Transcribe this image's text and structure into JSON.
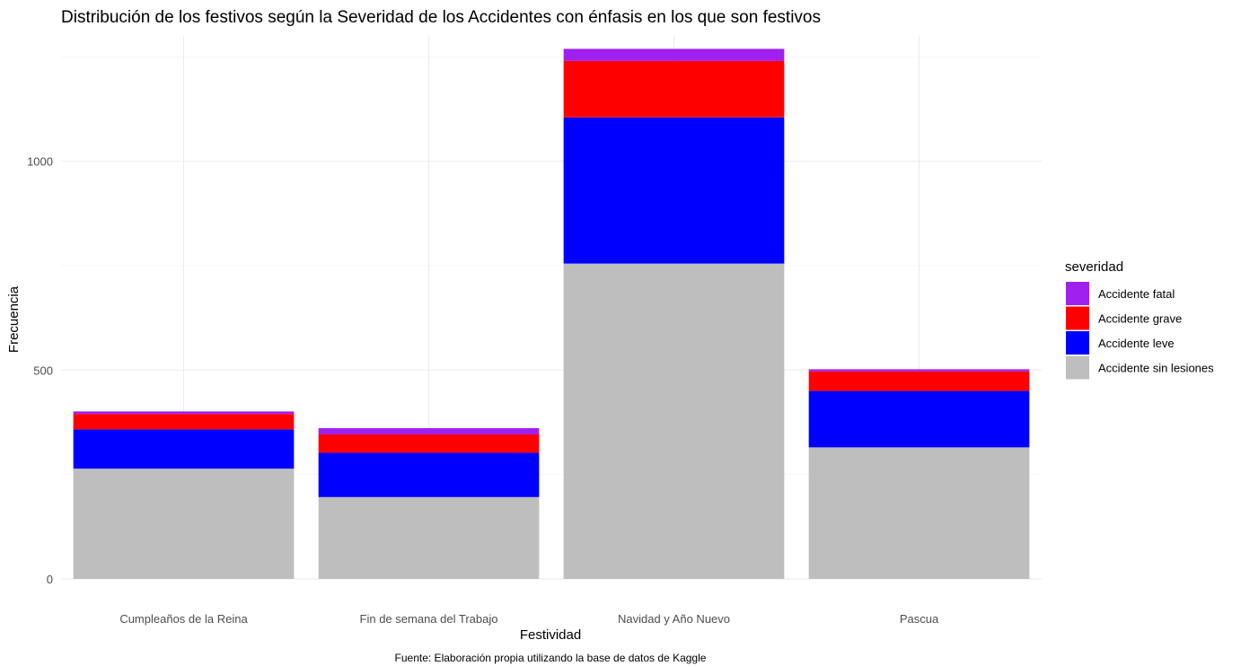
{
  "chart_data": {
    "type": "bar",
    "stacked": true,
    "title": "Distribución de los festivos según la Severidad de los Accidentes con énfasis en los que son festivos",
    "xlabel": "Festividad",
    "ylabel": "Frecuencia",
    "caption": "Fuente: Elaboración propia utilizando la base de datos de Kaggle",
    "categories": [
      "Cumpleaños de la Reina",
      "Fin de semana del Trabajo",
      "Navidad y Año Nuevo",
      "Pascua"
    ],
    "y_ticks": [
      0,
      500,
      1000
    ],
    "ylim": [
      0,
      1300
    ],
    "grid": true,
    "legend_title": "severidad",
    "legend_position": "right",
    "series": [
      {
        "name": "Accidente sin lesiones",
        "color": "#bebebe",
        "values": [
          264,
          196,
          755,
          315
        ]
      },
      {
        "name": "Accidente leve",
        "color": "#0000ff",
        "values": [
          94,
          106,
          350,
          135
        ]
      },
      {
        "name": "Accidente grave",
        "color": "#ff0000",
        "values": [
          37,
          44,
          135,
          47
        ]
      },
      {
        "name": "Accidente fatal",
        "color": "#a020f0",
        "values": [
          6,
          15,
          29,
          5
        ]
      }
    ],
    "legend_order": [
      "Accidente fatal",
      "Accidente grave",
      "Accidente leve",
      "Accidente sin lesiones"
    ]
  }
}
